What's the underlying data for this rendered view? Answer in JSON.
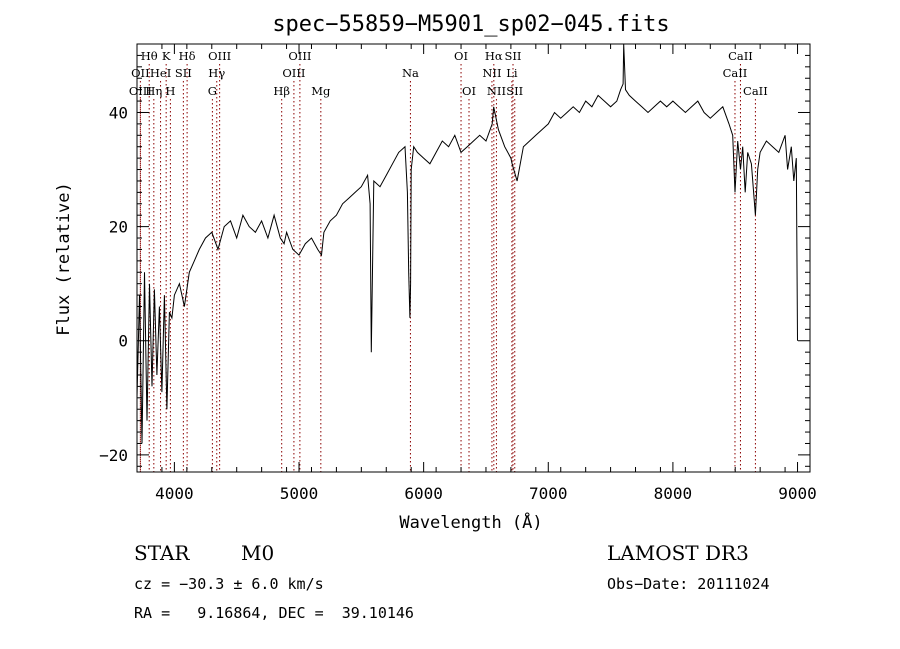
{
  "chart_data": {
    "type": "line",
    "title": "spec−55859−M5901_sp02−045.fits",
    "xlabel": "Wavelength (Å)",
    "ylabel": "Flux (relative)",
    "xlim": [
      3700,
      9100
    ],
    "ylim": [
      -23,
      52
    ],
    "x_ticks": [
      4000,
      5000,
      6000,
      7000,
      8000,
      9000
    ],
    "x_tick_labels": [
      "4000",
      "5000",
      "6000",
      "7000",
      "8000",
      "9000"
    ],
    "y_ticks": [
      -20,
      0,
      20,
      40
    ],
    "y_tick_labels": [
      "−20",
      "0",
      "20",
      "40"
    ],
    "grid": false,
    "series": [
      {
        "name": "flux",
        "color": "#000000",
        "x": [
          3700,
          3720,
          3740,
          3760,
          3780,
          3800,
          3820,
          3840,
          3860,
          3880,
          3900,
          3920,
          3940,
          3960,
          3980,
          4000,
          4040,
          4080,
          4120,
          4160,
          4200,
          4250,
          4300,
          4350,
          4400,
          4450,
          4500,
          4550,
          4600,
          4650,
          4700,
          4750,
          4800,
          4850,
          4880,
          4900,
          4950,
          5000,
          5050,
          5100,
          5150,
          5180,
          5200,
          5250,
          5300,
          5350,
          5400,
          5450,
          5500,
          5550,
          5570,
          5580,
          5600,
          5650,
          5700,
          5750,
          5800,
          5850,
          5870,
          5880,
          5890,
          5895,
          5900,
          5920,
          5950,
          6000,
          6050,
          6100,
          6150,
          6200,
          6250,
          6300,
          6350,
          6400,
          6450,
          6500,
          6550,
          6562,
          6600,
          6650,
          6700,
          6710,
          6750,
          6800,
          6850,
          6900,
          6950,
          7000,
          7050,
          7100,
          7150,
          7200,
          7250,
          7300,
          7350,
          7400,
          7450,
          7500,
          7550,
          7580,
          7600,
          7605,
          7620,
          7650,
          7700,
          7750,
          7800,
          7850,
          7900,
          7950,
          8000,
          8050,
          8100,
          8150,
          8200,
          8250,
          8300,
          8350,
          8400,
          8450,
          8480,
          8498,
          8520,
          8542,
          8560,
          8580,
          8600,
          8630,
          8662,
          8680,
          8700,
          8750,
          8800,
          8850,
          8900,
          8920,
          8950,
          8970,
          8990,
          9000
        ],
        "y": [
          -10,
          8,
          -18,
          12,
          -14,
          10,
          -8,
          9,
          -6,
          6,
          -9,
          8,
          -12,
          5,
          4,
          8,
          10,
          6,
          12,
          14,
          16,
          18,
          19,
          16,
          20,
          21,
          18,
          22,
          20,
          19,
          21,
          18,
          22,
          18,
          17,
          19,
          16,
          15,
          17,
          18,
          16,
          15,
          19,
          21,
          22,
          24,
          25,
          26,
          27,
          29,
          24,
          -2,
          28,
          27,
          29,
          31,
          33,
          34,
          26,
          12,
          4,
          10,
          30,
          34,
          33,
          32,
          31,
          33,
          35,
          34,
          36,
          33,
          34,
          35,
          36,
          35,
          38,
          41,
          37,
          34,
          32,
          31,
          28,
          34,
          35,
          36,
          37,
          38,
          40,
          39,
          40,
          41,
          40,
          42,
          41,
          43,
          42,
          41,
          42,
          44,
          45,
          52,
          44,
          43,
          42,
          41,
          40,
          41,
          42,
          41,
          42,
          41,
          40,
          41,
          42,
          40,
          39,
          40,
          41,
          38,
          36,
          26,
          35,
          30,
          34,
          26,
          33,
          31,
          22,
          30,
          33,
          35,
          34,
          33,
          36,
          30,
          34,
          28,
          32,
          0
        ]
      }
    ],
    "spectral_lines": [
      {
        "label": "Hθ",
        "wl": 3798,
        "row": 1
      },
      {
        "label": "OII",
        "wl": 3727,
        "row": 2
      },
      {
        "label": "OIII",
        "wl": 3727,
        "row": 3
      },
      {
        "label": "Hη",
        "wl": 3835,
        "row": 3
      },
      {
        "label": "HeI",
        "wl": 3889,
        "row": 2
      },
      {
        "label": "K",
        "wl": 3934,
        "row": 1
      },
      {
        "label": "H",
        "wl": 3968,
        "row": 3
      },
      {
        "label": "SII",
        "wl": 4072,
        "row": 2
      },
      {
        "label": "Hδ",
        "wl": 4102,
        "row": 1
      },
      {
        "label": "G",
        "wl": 4305,
        "row": 3
      },
      {
        "label": "OIII",
        "wl": 4363,
        "row": 1
      },
      {
        "label": "Hγ",
        "wl": 4340,
        "row": 2
      },
      {
        "label": "Hβ",
        "wl": 4861,
        "row": 3
      },
      {
        "label": "OIII",
        "wl": 5007,
        "row": 1
      },
      {
        "label": "OIII",
        "wl": 4959,
        "row": 2
      },
      {
        "label": "Mg",
        "wl": 5175,
        "row": 3
      },
      {
        "label": "Na",
        "wl": 5894,
        "row": 2
      },
      {
        "label": "OI",
        "wl": 6300,
        "row": 1
      },
      {
        "label": "OI",
        "wl": 6364,
        "row": 3
      },
      {
        "label": "Hα",
        "wl": 6563,
        "row": 1
      },
      {
        "label": "NII",
        "wl": 6548,
        "row": 2
      },
      {
        "label": "NII",
        "wl": 6584,
        "row": 3
      },
      {
        "label": "SII",
        "wl": 6717,
        "row": 1
      },
      {
        "label": "Li",
        "wl": 6708,
        "row": 2
      },
      {
        "label": "SII",
        "wl": 6731,
        "row": 3
      },
      {
        "label": "CaII",
        "wl": 8542,
        "row": 1
      },
      {
        "label": "CaII",
        "wl": 8498,
        "row": 2
      },
      {
        "label": "CaII",
        "wl": 8662,
        "row": 3
      }
    ]
  },
  "info": {
    "object_class": "STAR",
    "subclass": "M0",
    "survey": "LAMOST DR3",
    "cz": "cz = −30.3 ± 6.0 km/s",
    "obs_date": "Obs−Date: 20111024",
    "coords": "RA =   9.16864, DEC =  39.10146"
  },
  "colors": {
    "axes": "#000000",
    "spectrum": "#000000",
    "line_marker": "#8b0000"
  }
}
